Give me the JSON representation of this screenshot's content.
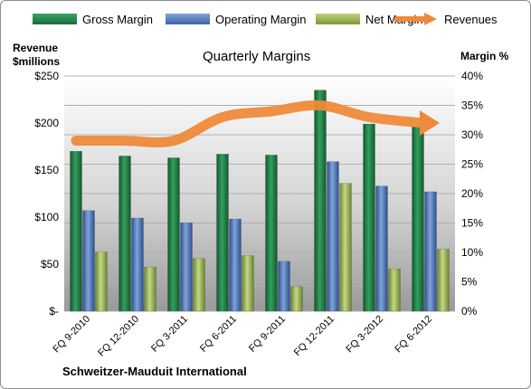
{
  "legend": {
    "gross": "Gross Margin",
    "operating": "Operating Margin",
    "net": "Net Margin",
    "revenues": "Revenues"
  },
  "left_axis_title": "Revenue $millions",
  "right_axis_title": "Margin %",
  "company": "Schweitzer-Mauduit International",
  "colors": {
    "gross": "#1f7a44",
    "operating": "#4a70b5",
    "net": "#93ad4a",
    "revenues": "#ee8a3a"
  },
  "chart_data": {
    "type": "bar",
    "title": "Quarterly Margins",
    "categories": [
      "FQ 9-2010",
      "FQ 12-2010",
      "FQ 3-2011",
      "FQ 6-2011",
      "FQ 9-2011",
      "FQ 12-2011",
      "FQ 3-2012",
      "FQ 6-2012"
    ],
    "series": [
      {
        "name": "Gross Margin",
        "values": [
          170,
          165,
          163,
          167,
          166,
          235,
          199,
          196
        ]
      },
      {
        "name": "Operating Margin",
        "values": [
          107,
          99,
          94,
          98,
          53,
          159,
          133,
          127
        ]
      },
      {
        "name": "Net Margin",
        "values": [
          63,
          47,
          56,
          59,
          26,
          136,
          45,
          66
        ]
      }
    ],
    "line_series": {
      "name": "Revenues",
      "axis": "right",
      "values": [
        29,
        29,
        29,
        33,
        34,
        35,
        33,
        32
      ]
    },
    "ylim": [
      0,
      250
    ],
    "y_ticks": [
      "$-",
      "$50",
      "$100",
      "$150",
      "$200",
      "$250"
    ],
    "y2lim": [
      0,
      40
    ],
    "y2_ticks": [
      "0%",
      "5%",
      "10%",
      "15%",
      "20%",
      "25%",
      "30%",
      "35%",
      "40%"
    ],
    "grid": true,
    "legend_position": "top"
  }
}
